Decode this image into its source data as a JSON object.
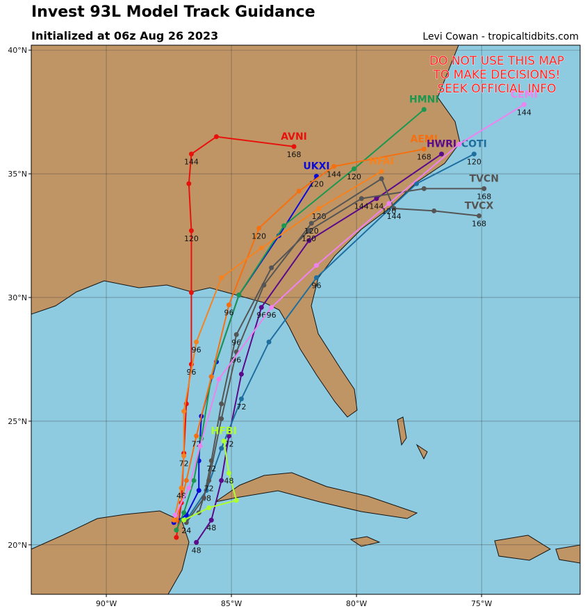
{
  "map": {
    "title": "Invest 93L Model Track Guidance",
    "subtitle": "Initialized at 06z Aug 26 2023",
    "credit": "Levi Cowan - tropicaltidbits.com",
    "warning": [
      "DO NOT USE THIS MAP",
      "TO MAKE DECISIONS!",
      "SEEK OFFICIAL INFO"
    ],
    "xlim": [
      -93,
      -71.06
    ],
    "ylim": [
      18.0,
      40.2
    ],
    "xticks": [
      {
        "value": -90,
        "label": "90°W"
      },
      {
        "value": -85,
        "label": "85°W"
      },
      {
        "value": -80,
        "label": "80°W"
      },
      {
        "value": -75,
        "label": "75°W"
      }
    ],
    "yticks": [
      {
        "value": 20,
        "label": "20°N"
      },
      {
        "value": 25,
        "label": "25°N"
      },
      {
        "value": 30,
        "label": "30°N"
      },
      {
        "value": 35,
        "label": "35°N"
      },
      {
        "value": 40,
        "label": "40°N"
      }
    ],
    "tracks": [
      {
        "name": "AVNI",
        "color": "#e8120c",
        "points": [
          {
            "lon": -82.5,
            "lat": 36.1,
            "hour": "168"
          },
          {
            "lon": -85.6,
            "lat": 36.5
          },
          {
            "lon": -86.6,
            "lat": 35.8,
            "hour": "144"
          },
          {
            "lon": -86.7,
            "lat": 34.6
          },
          {
            "lon": -86.6,
            "lat": 32.7,
            "hour": "120"
          },
          {
            "lon": -86.6,
            "lat": 30.2
          },
          {
            "lon": -86.6,
            "lat": 27.3,
            "hour": "96"
          },
          {
            "lon": -86.8,
            "lat": 25.7
          },
          {
            "lon": -86.9,
            "lat": 23.7
          },
          {
            "lon": -87.0,
            "lat": 21.7
          },
          {
            "lon": -87.2,
            "lat": 20.3
          }
        ]
      },
      {
        "name": "UKXI",
        "color": "#0b0bd8",
        "points": [
          {
            "lon": -81.6,
            "lat": 34.9,
            "hour": "120"
          },
          {
            "lon": -83.1,
            "lat": 32.5
          },
          {
            "lon": -84.7,
            "lat": 30.1
          },
          {
            "lon": -85.6,
            "lat": 27.4
          },
          {
            "lon": -86.2,
            "lat": 25.2
          },
          {
            "lon": -86.3,
            "lat": 23.4
          },
          {
            "lon": -86.3,
            "lat": 22.2
          },
          {
            "lon": -86.8,
            "lat": 21.2
          },
          {
            "lon": -87.3,
            "lat": 20.9
          }
        ]
      },
      {
        "name": "HMNI",
        "color": "#1a9850",
        "points": [
          {
            "lon": -77.3,
            "lat": 37.6
          },
          {
            "lon": -80.1,
            "lat": 35.2,
            "hour": "120"
          },
          {
            "lon": -82.9,
            "lat": 32.9
          },
          {
            "lon": -84.7,
            "lat": 30.1
          },
          {
            "lon": -85.8,
            "lat": 26.8
          },
          {
            "lon": -86.2,
            "lat": 24.3
          },
          {
            "lon": -86.5,
            "lat": 22.6
          },
          {
            "lon": -86.9,
            "lat": 21.3
          },
          {
            "lon": -87.2,
            "lat": 20.6
          }
        ]
      },
      {
        "name": "AEMI",
        "color": "#f57010",
        "points": [
          {
            "lon": -77.3,
            "lat": 36.0,
            "hour": "168"
          },
          {
            "lon": -80.9,
            "lat": 35.3,
            "hour": "144"
          },
          {
            "lon": -82.3,
            "lat": 34.3
          },
          {
            "lon": -83.9,
            "lat": 32.8,
            "hour": "120"
          },
          {
            "lon": -85.1,
            "lat": 29.7,
            "hour": "96"
          },
          {
            "lon": -85.8,
            "lat": 26.8
          },
          {
            "lon": -86.4,
            "lat": 24.4,
            "hour": "72"
          },
          {
            "lon": -86.8,
            "lat": 22.6
          },
          {
            "lon": -87.2,
            "lat": 21.0
          }
        ]
      },
      {
        "name": "HFAI",
        "color": "#f5821f",
        "points": [
          {
            "lon": -79.0,
            "lat": 35.1
          },
          {
            "lon": -81.5,
            "lat": 33.6,
            "hour": "120"
          },
          {
            "lon": -83.8,
            "lat": 32.0
          },
          {
            "lon": -85.4,
            "lat": 30.8
          },
          {
            "lon": -86.4,
            "lat": 28.2,
            "hour": "96"
          },
          {
            "lon": -86.9,
            "lat": 25.4
          },
          {
            "lon": -86.9,
            "lat": 23.6,
            "hour": "72"
          },
          {
            "lon": -87.0,
            "lat": 22.3,
            "hour": "48"
          },
          {
            "lon": -87.3,
            "lat": 21.0
          }
        ]
      },
      {
        "name": "HWRI",
        "color": "#5a0a8a",
        "points": [
          {
            "lon": -76.6,
            "lat": 35.8
          },
          {
            "lon": -79.2,
            "lat": 34.0,
            "hour": "144"
          },
          {
            "lon": -81.9,
            "lat": 32.3
          },
          {
            "lon": -83.8,
            "lat": 29.6,
            "hour": "96"
          },
          {
            "lon": -84.6,
            "lat": 26.9
          },
          {
            "lon": -85.1,
            "lat": 24.4,
            "hour": "72"
          },
          {
            "lon": -85.4,
            "lat": 22.6
          },
          {
            "lon": -85.8,
            "lat": 21.0,
            "hour": "48"
          },
          {
            "lon": -86.4,
            "lat": 20.1,
            "hour": "48"
          }
        ]
      },
      {
        "name": "COTI",
        "color": "#1f6ea0",
        "points": [
          {
            "lon": -75.3,
            "lat": 35.8,
            "hour": "120"
          },
          {
            "lon": -77.6,
            "lat": 34.6
          },
          {
            "lon": -81.6,
            "lat": 30.8,
            "hour": "96"
          },
          {
            "lon": -83.5,
            "lat": 28.2
          },
          {
            "lon": -84.6,
            "lat": 25.9,
            "hour": "72"
          },
          {
            "lon": -85.4,
            "lat": 23.9
          },
          {
            "lon": -86.0,
            "lat": 22.2,
            "hour": "48"
          },
          {
            "lon": -86.8,
            "lat": 21.0
          }
        ]
      },
      {
        "name": "TVCN",
        "color": "#555555",
        "points": [
          {
            "lon": -74.9,
            "lat": 34.4,
            "hour": "168"
          },
          {
            "lon": -77.3,
            "lat": 34.4
          },
          {
            "lon": -79.8,
            "lat": 34.0,
            "hour": "144"
          },
          {
            "lon": -81.9,
            "lat": 32.7,
            "hour": "120"
          },
          {
            "lon": -83.4,
            "lat": 31.2
          },
          {
            "lon": -84.8,
            "lat": 28.5,
            "hour": "96"
          },
          {
            "lon": -85.4,
            "lat": 25.7
          },
          {
            "lon": -85.8,
            "lat": 23.4,
            "hour": "72"
          },
          {
            "lon": -86.1,
            "lat": 21.9
          },
          {
            "lon": -86.8,
            "lat": 20.9,
            "hour": "24"
          }
        ]
      },
      {
        "name": "TVCX",
        "color": "#555555",
        "points": [
          {
            "lon": -75.1,
            "lat": 33.3,
            "hour": "168"
          },
          {
            "lon": -76.9,
            "lat": 33.5
          },
          {
            "lon": -78.5,
            "lat": 33.6,
            "hour": "144"
          },
          {
            "lon": -79.0,
            "lat": 34.8
          },
          {
            "lon": -81.8,
            "lat": 33.0,
            "hour": "120"
          },
          {
            "lon": -83.7,
            "lat": 30.5
          },
          {
            "lon": -84.8,
            "lat": 27.8,
            "hour": "96"
          },
          {
            "lon": -85.4,
            "lat": 25.1
          },
          {
            "lon": -85.9,
            "lat": 22.6,
            "hour": "72"
          },
          {
            "lon": -86.3,
            "lat": 21.3
          }
        ]
      },
      {
        "name": "CEMI",
        "color": "#ee82ee",
        "points": [
          {
            "lon": -73.3,
            "lat": 37.8,
            "hour": "144"
          },
          {
            "lon": -75.9,
            "lat": 36.2
          },
          {
            "lon": -78.7,
            "lat": 33.8,
            "hour": "120"
          },
          {
            "lon": -81.6,
            "lat": 31.3
          },
          {
            "lon": -83.4,
            "lat": 29.6,
            "hour": "96"
          },
          {
            "lon": -85.5,
            "lat": 26.7
          },
          {
            "lon": -86.25,
            "lat": 24.0
          },
          {
            "lon": -86.7,
            "lat": 22.3
          },
          {
            "lon": -87.25,
            "lat": 21.2
          }
        ]
      },
      {
        "name": "HFBI",
        "color": "#adff2f",
        "points": [
          {
            "lon": -85.3,
            "lat": 24.2
          },
          {
            "lon": -85.1,
            "lat": 22.9,
            "hour": "48"
          },
          {
            "lon": -84.8,
            "lat": 21.8
          },
          {
            "lon": -85.9,
            "lat": 21.5
          },
          {
            "lon": -86.9,
            "lat": 21.0
          }
        ]
      }
    ]
  }
}
